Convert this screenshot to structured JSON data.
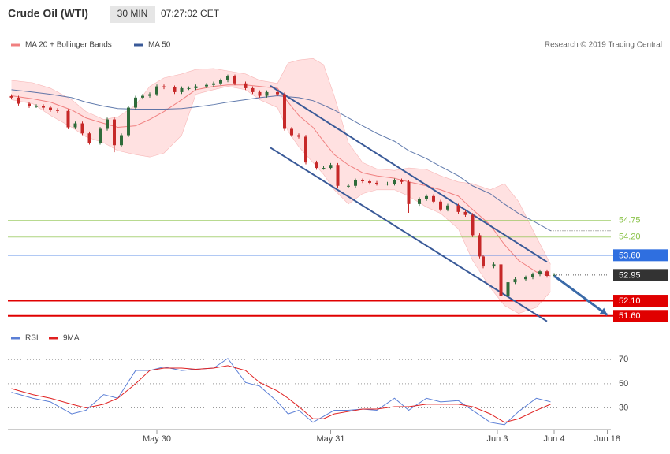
{
  "chart_data": {
    "type": "candlestick",
    "title": "Crude Oil (WTI)",
    "timeframe": "30 MIN",
    "time": "07:27:02 CET",
    "source": "Research © 2019 Trading Central",
    "up_color": "#2f6b3a",
    "down_color": "#c62828",
    "x": [
      1,
      3,
      6,
      8,
      10,
      12,
      14,
      17,
      19,
      21,
      23,
      26,
      28,
      30,
      32,
      34,
      36,
      38,
      40,
      42,
      44,
      47,
      49,
      51,
      53,
      56,
      58,
      60,
      62,
      64,
      67,
      69,
      71,
      73,
      76,
      78,
      80,
      82,
      84,
      87,
      89,
      91,
      93,
      96,
      98,
      100,
      102,
      104,
      107,
      109,
      111,
      113,
      116,
      118,
      120,
      122,
      124,
      127,
      129,
      131,
      133,
      134,
      137,
      139,
      141,
      143,
      146,
      148,
      150,
      152,
      154
    ],
    "open": [
      58.85,
      58.8,
      58.6,
      58.52,
      58.52,
      58.47,
      58.39,
      58.36,
      57.82,
      57.95,
      57.62,
      57.31,
      57.77,
      58.08,
      57.23,
      57.56,
      58.47,
      58.8,
      58.86,
      58.91,
      59.17,
      59.14,
      58.98,
      59.11,
      59.11,
      59.17,
      59.22,
      59.27,
      59.37,
      59.5,
      59.27,
      59.11,
      58.98,
      58.86,
      58.98,
      58.91,
      57.77,
      57.56,
      57.51,
      56.66,
      56.48,
      56.48,
      56.58,
      55.89,
      55.89,
      56.07,
      56.04,
      55.99,
      55.96,
      55.96,
      56.07,
      56.02,
      55.29,
      55.45,
      55.55,
      55.37,
      55.11,
      55.24,
      55.03,
      54.93,
      54.26,
      53.56,
      53.23,
      53.3,
      52.27,
      52.71,
      52.81,
      52.87,
      52.97,
      53.07,
      52.92
    ],
    "high": [
      58.91,
      58.86,
      58.66,
      58.58,
      58.58,
      58.53,
      58.45,
      58.42,
      58.01,
      58.01,
      57.68,
      57.83,
      58.14,
      58.14,
      57.62,
      58.53,
      58.86,
      58.92,
      58.97,
      59.23,
      59.23,
      59.2,
      59.17,
      59.17,
      59.23,
      59.28,
      59.33,
      59.43,
      59.56,
      59.56,
      59.33,
      59.17,
      59.04,
      59.04,
      59.04,
      58.97,
      57.83,
      57.62,
      57.57,
      56.72,
      56.54,
      56.64,
      56.64,
      55.95,
      56.13,
      56.13,
      56.1,
      56.05,
      56.02,
      56.13,
      56.13,
      56.08,
      55.51,
      55.61,
      55.61,
      55.43,
      55.3,
      55.3,
      55.09,
      54.99,
      54.32,
      53.62,
      53.36,
      53.36,
      52.77,
      52.87,
      52.93,
      53.03,
      53.13,
      53.13,
      53.01
    ],
    "low": [
      58.74,
      58.54,
      58.46,
      58.46,
      58.41,
      58.33,
      58.3,
      57.76,
      57.76,
      57.56,
      57.25,
      57.25,
      57.71,
      57.0,
      57.17,
      57.5,
      58.41,
      58.74,
      58.8,
      58.85,
      59.08,
      58.92,
      58.92,
      59.05,
      59.05,
      59.11,
      59.16,
      59.21,
      59.31,
      59.21,
      59.05,
      58.92,
      58.8,
      58.8,
      58.85,
      57.71,
      57.5,
      57.45,
      56.6,
      56.42,
      56.42,
      56.42,
      55.83,
      55.83,
      55.83,
      55.98,
      55.93,
      55.9,
      55.9,
      55.9,
      55.96,
      55.0,
      55.23,
      55.39,
      55.31,
      55.05,
      55.05,
      54.97,
      54.87,
      54.2,
      53.5,
      53.17,
      53.17,
      52.0,
      52.21,
      52.65,
      52.75,
      52.81,
      52.91,
      52.86,
      52.86
    ],
    "close": [
      58.8,
      58.6,
      58.52,
      58.52,
      58.47,
      58.39,
      58.36,
      57.82,
      57.95,
      57.62,
      57.31,
      57.77,
      58.08,
      57.23,
      57.56,
      58.47,
      58.8,
      58.86,
      58.91,
      59.17,
      59.14,
      58.98,
      59.11,
      59.11,
      59.17,
      59.22,
      59.27,
      59.37,
      59.5,
      59.27,
      59.11,
      58.98,
      58.86,
      58.98,
      58.91,
      57.77,
      57.56,
      57.51,
      56.66,
      56.48,
      56.48,
      56.58,
      55.89,
      55.89,
      56.07,
      56.04,
      55.99,
      55.96,
      55.96,
      56.07,
      56.02,
      55.29,
      55.45,
      55.55,
      55.37,
      55.11,
      55.24,
      55.03,
      54.93,
      54.26,
      53.56,
      53.23,
      53.3,
      52.27,
      52.71,
      52.81,
      52.87,
      52.97,
      53.07,
      52.92,
      52.95
    ],
    "xlim": [
      0,
      170
    ],
    "xticks": [
      {
        "value": 42,
        "label": "May 30"
      },
      {
        "value": 91,
        "label": "May 31"
      },
      {
        "value": 138,
        "label": "Jun 3"
      },
      {
        "value": 154,
        "label": "Jun 4"
      },
      {
        "value": 169,
        "label": "Jun 18"
      }
    ],
    "ylim": [
      51.1,
      60.2
    ],
    "indicators": {
      "x": [
        1,
        7,
        12,
        18,
        22,
        27,
        31,
        36,
        40,
        44,
        49,
        53,
        58,
        62,
        67,
        71,
        76,
        79,
        82,
        86,
        89,
        92,
        96,
        100,
        104,
        109,
        113,
        118,
        122,
        127,
        131,
        136,
        140,
        144,
        149,
        153
      ],
      "ma20": {
        "name": "MA 20 + Bollinger Bands",
        "color": "#f08080",
        "band_color": "#ffdada",
        "upper": [
          59.37,
          59.29,
          59.11,
          58.73,
          58.34,
          58.08,
          58.16,
          58.55,
          59.17,
          59.45,
          59.58,
          59.73,
          59.76,
          59.68,
          59.58,
          59.37,
          59.27,
          59.94,
          60.04,
          60.09,
          59.89,
          58.86,
          57.31,
          56.66,
          56.45,
          56.4,
          56.48,
          56.43,
          56.22,
          56.02,
          55.96,
          55.76,
          55.96,
          55.37,
          54.2,
          53.3
        ],
        "middle": [
          58.86,
          58.76,
          58.65,
          58.39,
          58.13,
          57.95,
          57.82,
          57.87,
          58.08,
          58.34,
          58.73,
          59.06,
          59.17,
          59.22,
          59.22,
          59.17,
          59.11,
          58.65,
          58.21,
          57.82,
          57.36,
          56.92,
          56.58,
          56.32,
          56.22,
          56.14,
          56.02,
          55.89,
          55.76,
          55.55,
          55.11,
          54.6,
          53.95,
          53.43,
          53.05,
          52.92
        ],
        "lower": [
          58.73,
          58.6,
          58.21,
          57.82,
          57.51,
          57.31,
          57.05,
          56.92,
          56.84,
          56.97,
          57.56,
          58.91,
          59.06,
          59.17,
          59.06,
          58.73,
          58.47,
          57.69,
          57.18,
          56.66,
          56.27,
          55.76,
          55.29,
          55.63,
          55.76,
          55.76,
          55.55,
          55.19,
          54.98,
          54.47,
          53.43,
          52.53,
          51.94,
          51.68,
          51.88,
          52.4
        ]
      },
      "ma50": {
        "name": "MA 50",
        "color": "#3a5a98",
        "values": [
          59.06,
          58.98,
          58.91,
          58.8,
          58.65,
          58.52,
          58.44,
          58.42,
          58.42,
          58.42,
          58.44,
          58.49,
          58.57,
          58.65,
          58.73,
          58.8,
          58.86,
          58.83,
          58.8,
          58.7,
          58.55,
          58.39,
          58.13,
          57.87,
          57.62,
          57.36,
          57.05,
          56.79,
          56.53,
          56.22,
          55.89,
          55.63,
          55.29,
          54.98,
          54.67,
          54.41
        ]
      }
    },
    "levels": [
      {
        "value": 54.75,
        "color": "#8bc34a",
        "boxed": false
      },
      {
        "value": 54.2,
        "label": "54.20",
        "color": "#8bc34a",
        "boxed": false
      },
      {
        "value": 53.6,
        "label": "53.60",
        "color": "#2f6fe0",
        "boxed": true
      },
      {
        "value": 52.95,
        "color": "#333333",
        "boxed": true,
        "dotted": true
      },
      {
        "value": 52.1,
        "label": "52.10",
        "color": "#e00000",
        "boxed": true
      },
      {
        "value": 51.6,
        "label": "51.60",
        "color": "#e00000",
        "boxed": true
      }
    ],
    "trendlines": {
      "color": "#3a5a98",
      "lines": [
        {
          "x": [
            74,
            152
          ],
          "y": [
            59.19,
            53.38
          ]
        },
        {
          "x": [
            74,
            152
          ],
          "y": [
            57.15,
            51.42
          ]
        }
      ]
    },
    "projection": {
      "color": "#3a6aa8",
      "x": [
        154,
        169
      ],
      "y": [
        52.92,
        51.63
      ]
    },
    "rsi": {
      "type": "line",
      "ylim": [
        12,
        80
      ],
      "yticks": [
        70,
        50,
        30
      ],
      "x": [
        1,
        7,
        12,
        18,
        22,
        27,
        31,
        36,
        40,
        44,
        49,
        53,
        58,
        62,
        67,
        71,
        76,
        79,
        82,
        86,
        89,
        92,
        96,
        100,
        104,
        109,
        113,
        118,
        122,
        127,
        131,
        136,
        140,
        144,
        149,
        153
      ],
      "series": [
        {
          "name": "RSI",
          "color": "#5b7fd6",
          "values": [
            43,
            38,
            35,
            25,
            28,
            41,
            38,
            61,
            61,
            64,
            61,
            62,
            63,
            71,
            51,
            48,
            35,
            25,
            28,
            18,
            23,
            28,
            28,
            29,
            28,
            38,
            28,
            38,
            35,
            36,
            28,
            18,
            16,
            27,
            38,
            35
          ]
        },
        {
          "name": "9MA",
          "color": "#e02020",
          "values": [
            46,
            41,
            38,
            33,
            30,
            33,
            38,
            50,
            61,
            63,
            63,
            62,
            63,
            65,
            61,
            51,
            44,
            38,
            31,
            21,
            21,
            25,
            27,
            29,
            29,
            31,
            31,
            33,
            33,
            33,
            31,
            25,
            18,
            21,
            28,
            33
          ]
        }
      ]
    }
  }
}
